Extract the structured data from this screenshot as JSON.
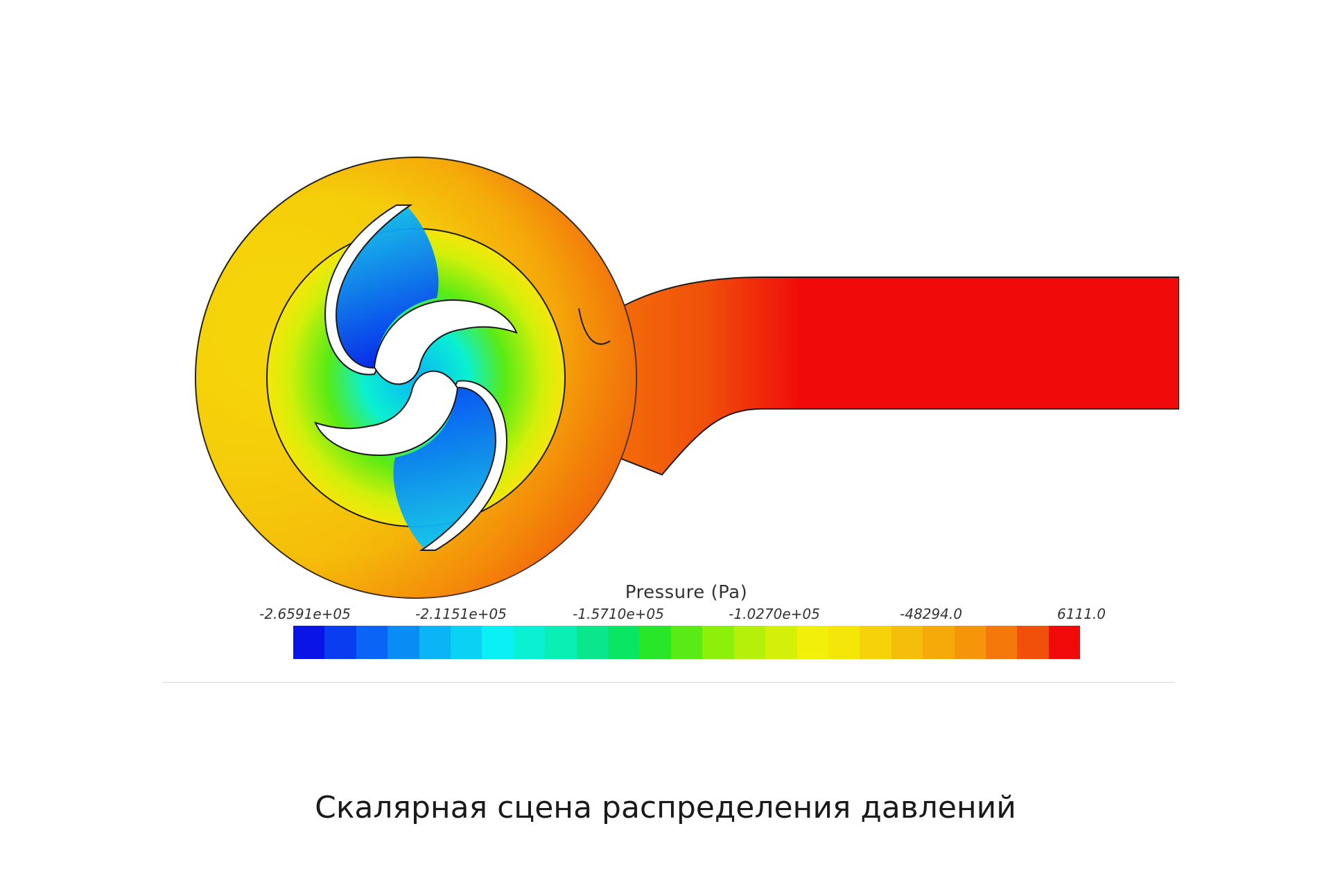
{
  "legend": {
    "title": "Pressure (Pa)",
    "ticks": [
      "-2.6591e+05",
      "-2.1151e+05",
      "-1.5710e+05",
      "-1.0270e+05",
      "-48294.0",
      "6111.0"
    ],
    "colors": [
      "#0a14e6",
      "#0a3cf0",
      "#0a64f5",
      "#0a8cf5",
      "#0ab4f5",
      "#0ad2f5",
      "#0af0f5",
      "#0af0d2",
      "#0af0b4",
      "#0ae68c",
      "#0ae664",
      "#28e628",
      "#5aeb14",
      "#8cf00a",
      "#b4f00a",
      "#d2f00a",
      "#f0f00a",
      "#f5e60a",
      "#f5d20a",
      "#f5be0a",
      "#f5aa0a",
      "#f5960a",
      "#f5780a",
      "#f0500a",
      "#f00a0a"
    ]
  },
  "caption": "Скалярная сцена распределения давлений"
}
